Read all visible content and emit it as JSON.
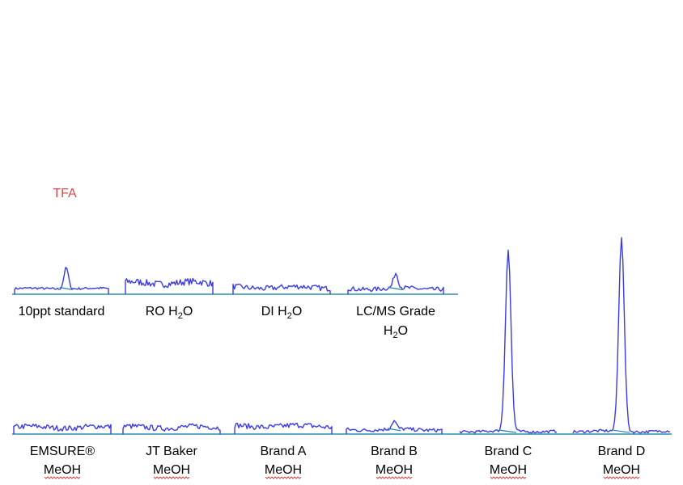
{
  "colors": {
    "trace": "#3b3be6",
    "baseline": "#1f7fb0",
    "axis": "#2a8fb0",
    "peak_label": "#e04848",
    "squiggle": "#d24a4a"
  },
  "chart_data": {
    "type": "line",
    "grid": false,
    "legend": "none",
    "peak_label": "TFA",
    "rows": [
      {
        "panels": [
          {
            "label": [
              "10ppt standard"
            ],
            "noise": [
              0.25,
              0.05
            ],
            "peak": {
              "at": 0.55,
              "height": 0.95,
              "width": 0.05
            },
            "step": true
          },
          {
            "label": [
              "RO H",
              "2",
              "O"
            ],
            "noise": [
              0.5,
              0.15
            ],
            "peak": null,
            "step": true
          },
          {
            "label": [
              "DI H",
              "2",
              "O"
            ],
            "noise": [
              0.3,
              0.12
            ],
            "peak": null,
            "step": true
          },
          {
            "label": [
              "LC/MS Grade",
              "H",
              "2",
              "O"
            ],
            "noise": [
              0.25,
              0.1
            ],
            "peak": {
              "at": 0.5,
              "height": 0.65,
              "width": 0.05
            },
            "step": true
          }
        ]
      },
      {
        "panels": [
          {
            "label": [
              "EMSURE®",
              "MeOH"
            ],
            "noise": [
              0.3,
              0.12
            ],
            "peak": null,
            "step": true
          },
          {
            "label": [
              "JT Baker",
              "MeOH"
            ],
            "noise": [
              0.3,
              0.12
            ],
            "peak": null,
            "step": true
          },
          {
            "label": [
              "Brand A",
              "MeOH"
            ],
            "noise": [
              0.35,
              0.12
            ],
            "peak": null,
            "step": true
          },
          {
            "label": [
              "Brand B",
              "MeOH"
            ],
            "noise": [
              0.2,
              0.08
            ],
            "peak": {
              "at": 0.5,
              "height": 0.35,
              "width": 0.05
            },
            "step": true
          },
          {
            "label": [
              "Brand C",
              "MeOH"
            ],
            "noise": [
              0.12,
              0.06
            ],
            "peak": {
              "at": 0.5,
              "height": 8.0,
              "width": 0.06
            },
            "step": false
          },
          {
            "label": [
              "Brand D",
              "MeOH"
            ],
            "noise": [
              0.12,
              0.06
            ],
            "peak": {
              "at": 0.5,
              "height": 8.6,
              "width": 0.06
            },
            "step": false
          }
        ]
      }
    ]
  }
}
